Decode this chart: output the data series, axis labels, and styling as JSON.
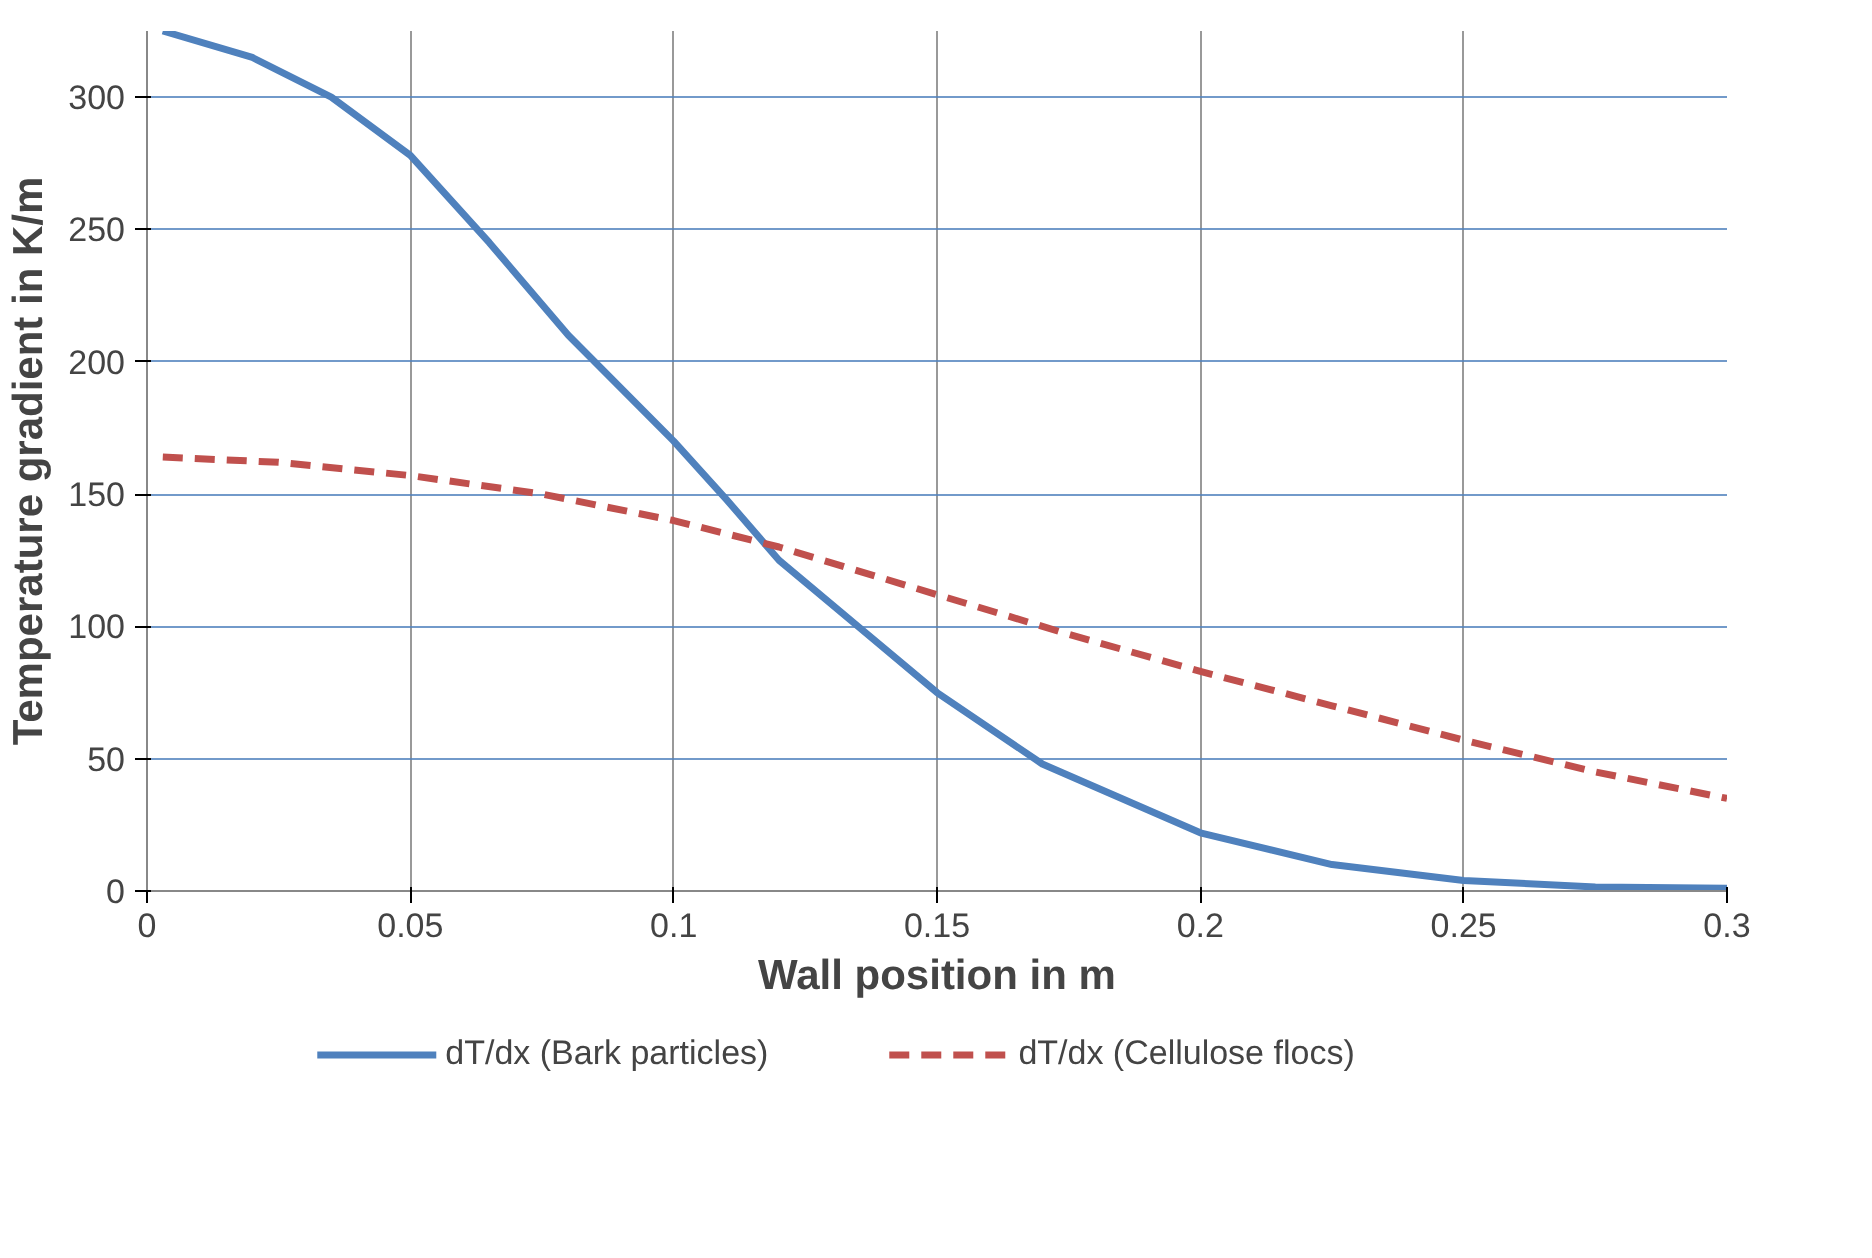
{
  "chart_data": {
    "type": "line",
    "xlabel": "Wall position in m",
    "ylabel": "Temperature gradient in K/m",
    "xlim": [
      0,
      0.3
    ],
    "xticks": [
      0,
      0.05,
      0.1,
      0.15,
      0.2,
      0.25,
      0.3
    ],
    "ylim": [
      0,
      325
    ],
    "yticks": [
      0,
      50,
      100,
      150,
      200,
      250,
      300
    ],
    "grid": true,
    "legend": "bottom",
    "series": [
      {
        "name": "dT/dx (Bark particles)",
        "color": "#4f81bd",
        "line_style": "solid",
        "x": [
          0.003,
          0.02,
          0.035,
          0.05,
          0.065,
          0.08,
          0.1,
          0.11,
          0.12,
          0.135,
          0.15,
          0.17,
          0.2,
          0.225,
          0.25,
          0.275,
          0.3
        ],
        "values": [
          325,
          315,
          300,
          278,
          245,
          210,
          170,
          148,
          125,
          100,
          75,
          48,
          22,
          10,
          4,
          1.5,
          1
        ]
      },
      {
        "name": "dT/dx (Cellulose flocs)",
        "color": "#c0504d",
        "line_style": "dashed",
        "x": [
          0.003,
          0.025,
          0.05,
          0.075,
          0.1,
          0.12,
          0.15,
          0.175,
          0.2,
          0.225,
          0.25,
          0.275,
          0.3
        ],
        "values": [
          164,
          162,
          157,
          150,
          140,
          130,
          112,
          97,
          83,
          70,
          57,
          45,
          35
        ]
      }
    ]
  }
}
